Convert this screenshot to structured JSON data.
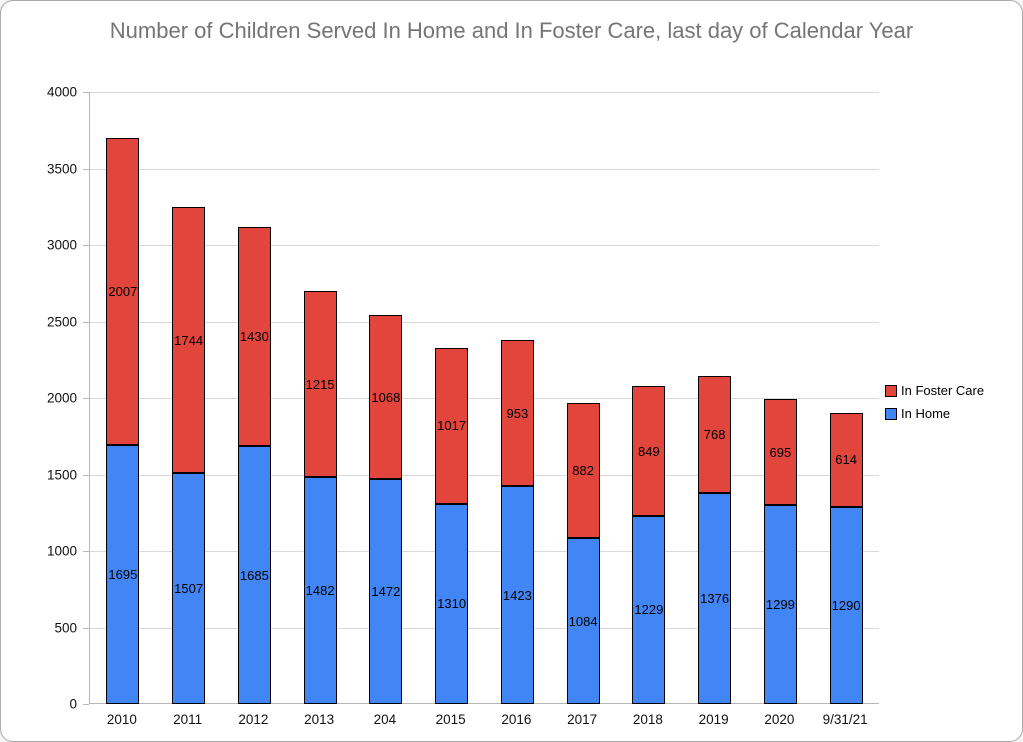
{
  "chart_data": {
    "type": "bar",
    "stacked": true,
    "title": "Number of Children Served In Home and In Foster Care, last day of Calendar Year",
    "categories": [
      "2010",
      "2011",
      "2012",
      "2013",
      "204",
      "2015",
      "2016",
      "2017",
      "2018",
      "2019",
      "2020",
      "9/31/21"
    ],
    "series": [
      {
        "name": "In Home",
        "color": "#4285F4",
        "values": [
          1695,
          1507,
          1685,
          1482,
          1472,
          1310,
          1423,
          1084,
          1229,
          1376,
          1299,
          1290
        ]
      },
      {
        "name": "In Foster Care",
        "color": "#E1453C",
        "values": [
          2007,
          1744,
          1430,
          1215,
          1068,
          1017,
          953,
          882,
          849,
          768,
          695,
          614
        ]
      }
    ],
    "ylim": [
      0,
      4000
    ],
    "yticks": [
      0,
      500,
      1000,
      1500,
      2000,
      2500,
      3000,
      3500,
      4000
    ],
    "grid": true,
    "data_labels": true,
    "legend_position": "right",
    "colors": {
      "title_text": "#757575",
      "axis_text": "#111111",
      "gridline": "#d9d9d9",
      "axis_line": "#b7b7b7",
      "bar_border": "#000000"
    }
  },
  "legend": {
    "items": [
      {
        "label": "In Foster Care",
        "color": "#E1453C"
      },
      {
        "label": "In Home",
        "color": "#4285F4"
      }
    ]
  }
}
